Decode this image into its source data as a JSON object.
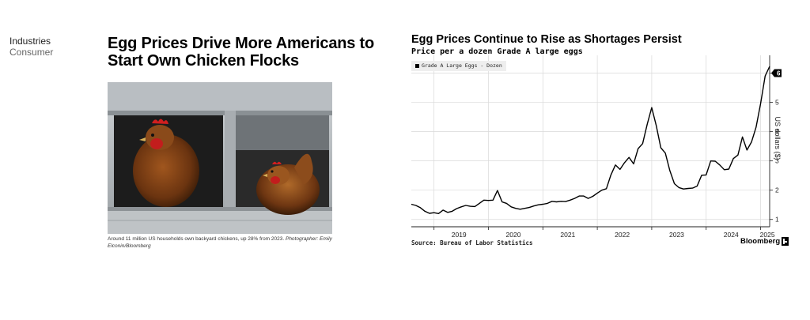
{
  "article": {
    "category_primary": "Industries",
    "category_secondary": "Consumer",
    "headline": "Egg Prices Drive More Americans to Start Own Chicken Flocks",
    "caption": "Around 11 million US households own backyard chickens, up 28% from 2023.",
    "caption_credit": "Photographer: Emily Elconin/Bloomberg"
  },
  "chart": {
    "source": "Source: Bureau of Labor Statistics",
    "brand": "Bloomberg"
  },
  "colors": {
    "line": "#000000",
    "grid": "#d9d9d9",
    "legend_bg": "#eeeeee"
  },
  "chart_data": {
    "type": "line",
    "title": "Egg Prices Continue to Rise as Shortages Persist",
    "subtitle": "Price per a dozen Grade A large eggs",
    "ylabel": "US dollars ($)",
    "xlabel": "",
    "ylim": [
      0.75,
      6.5
    ],
    "yticks": [
      1,
      2,
      3,
      4,
      5,
      6
    ],
    "xticks": [
      "2019",
      "2020",
      "2021",
      "2022",
      "2023",
      "2024",
      "2025"
    ],
    "xlim": [
      "2018-08",
      "2025-03"
    ],
    "legend": "top-left",
    "grid": true,
    "last_value_label": "6",
    "series": [
      {
        "name": "Grade A Large Eggs - Dozen",
        "points": [
          [
            "2018-08",
            1.52
          ],
          [
            "2018-09",
            1.48
          ],
          [
            "2018-10",
            1.4
          ],
          [
            "2018-11",
            1.28
          ],
          [
            "2018-12",
            1.21
          ],
          [
            "2019-01",
            1.23
          ],
          [
            "2019-02",
            1.2
          ],
          [
            "2019-03",
            1.32
          ],
          [
            "2019-04",
            1.24
          ],
          [
            "2019-05",
            1.28
          ],
          [
            "2019-06",
            1.37
          ],
          [
            "2019-07",
            1.43
          ],
          [
            "2019-08",
            1.48
          ],
          [
            "2019-09",
            1.45
          ],
          [
            "2019-10",
            1.44
          ],
          [
            "2019-11",
            1.55
          ],
          [
            "2019-12",
            1.66
          ],
          [
            "2020-01",
            1.65
          ],
          [
            "2020-02",
            1.66
          ],
          [
            "2020-03",
            1.99
          ],
          [
            "2020-04",
            1.6
          ],
          [
            "2020-05",
            1.55
          ],
          [
            "2020-06",
            1.43
          ],
          [
            "2020-07",
            1.38
          ],
          [
            "2020-08",
            1.35
          ],
          [
            "2020-09",
            1.38
          ],
          [
            "2020-10",
            1.41
          ],
          [
            "2020-11",
            1.46
          ],
          [
            "2020-12",
            1.5
          ],
          [
            "2021-01",
            1.52
          ],
          [
            "2021-02",
            1.55
          ],
          [
            "2021-03",
            1.62
          ],
          [
            "2021-04",
            1.6
          ],
          [
            "2021-05",
            1.62
          ],
          [
            "2021-06",
            1.61
          ],
          [
            "2021-07",
            1.66
          ],
          [
            "2021-08",
            1.72
          ],
          [
            "2021-09",
            1.8
          ],
          [
            "2021-10",
            1.8
          ],
          [
            "2021-11",
            1.72
          ],
          [
            "2021-12",
            1.79
          ],
          [
            "2022-01",
            1.9
          ],
          [
            "2022-02",
            2.0
          ],
          [
            "2022-03",
            2.05
          ],
          [
            "2022-04",
            2.52
          ],
          [
            "2022-05",
            2.86
          ],
          [
            "2022-06",
            2.71
          ],
          [
            "2022-07",
            2.94
          ],
          [
            "2022-08",
            3.12
          ],
          [
            "2022-09",
            2.9
          ],
          [
            "2022-10",
            3.42
          ],
          [
            "2022-11",
            3.59
          ],
          [
            "2022-12",
            4.25
          ],
          [
            "2023-01",
            4.82
          ],
          [
            "2023-02",
            4.21
          ],
          [
            "2023-03",
            3.45
          ],
          [
            "2023-04",
            3.27
          ],
          [
            "2023-05",
            2.67
          ],
          [
            "2023-06",
            2.22
          ],
          [
            "2023-07",
            2.09
          ],
          [
            "2023-08",
            2.04
          ],
          [
            "2023-09",
            2.06
          ],
          [
            "2023-10",
            2.07
          ],
          [
            "2023-11",
            2.14
          ],
          [
            "2023-12",
            2.51
          ],
          [
            "2024-01",
            2.52
          ],
          [
            "2024-02",
            3.0
          ],
          [
            "2024-03",
            2.99
          ],
          [
            "2024-04",
            2.86
          ],
          [
            "2024-05",
            2.7
          ],
          [
            "2024-06",
            2.72
          ],
          [
            "2024-07",
            3.08
          ],
          [
            "2024-08",
            3.2
          ],
          [
            "2024-09",
            3.82
          ],
          [
            "2024-10",
            3.37
          ],
          [
            "2024-11",
            3.65
          ],
          [
            "2024-12",
            4.15
          ],
          [
            "2025-01",
            4.95
          ],
          [
            "2025-02",
            5.9
          ],
          [
            "2025-03",
            6.23
          ]
        ]
      }
    ]
  }
}
